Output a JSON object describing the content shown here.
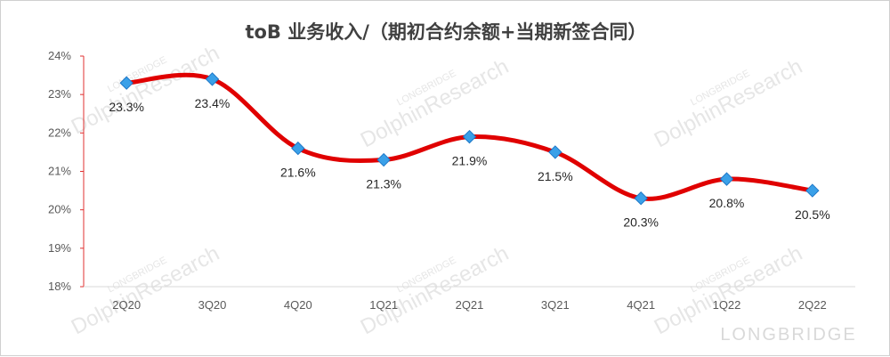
{
  "watermark": {
    "brand": "LONGBRIDGE",
    "text": "DolphinResearch"
  },
  "chart_data": {
    "type": "line",
    "title": "toB 业务收入/（期初合约余额+当期新签合同）",
    "xlabel": "",
    "ylabel": "",
    "categories": [
      "2Q20",
      "3Q20",
      "4Q20",
      "1Q21",
      "2Q21",
      "3Q21",
      "4Q21",
      "1Q22",
      "2Q22"
    ],
    "series": [
      {
        "values": [
          23.3,
          23.4,
          21.6,
          21.3,
          21.9,
          21.5,
          20.3,
          20.8,
          20.5
        ],
        "labels": [
          "23.3%",
          "23.4%",
          "21.6%",
          "21.3%",
          "21.9%",
          "21.5%",
          "20.3%",
          "20.8%",
          "20.5%"
        ]
      }
    ],
    "ylim": [
      18,
      24
    ],
    "yticks": [
      "18%",
      "19%",
      "20%",
      "21%",
      "22%",
      "23%",
      "24%"
    ],
    "grid": false,
    "legend": "none",
    "colors": {
      "line": "#e00000",
      "marker": "#3aa0e8",
      "marker_edge": "#1f78c8",
      "axis": "#e03030"
    }
  }
}
